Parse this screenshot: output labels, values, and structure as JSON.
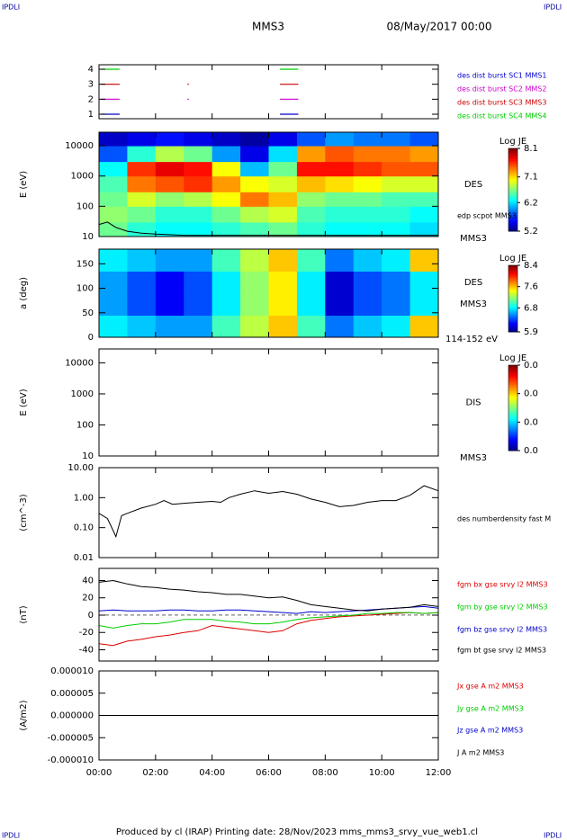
{
  "header": {
    "title": "MMS3",
    "date": "08/May/2017 00:00",
    "corners": [
      "IPDLI",
      "IPDLI",
      "IPDLI",
      "IPDLI"
    ],
    "footer": "Produced by cl (IRAP)   Printing date: 28/Nov/2023   mms_mms3_srvy_vue_web1.cl"
  },
  "chart_data": [
    {
      "type": "timeline",
      "xlim": [
        0,
        12
      ],
      "xticks": [
        0,
        2,
        4,
        6,
        8,
        10,
        12
      ],
      "ylim": [
        0.7,
        4.3
      ],
      "yticks": [
        1,
        2,
        3,
        4
      ],
      "series": [
        {
          "name": "des dist burst SC1 MMS1",
          "color": "#0000cc",
          "level": 1,
          "intervals": [
            [
              0.07,
              0.73
            ],
            [
              6.4,
              7.05
            ]
          ]
        },
        {
          "name": "des dist burst SC2 MMS2",
          "color": "#cc00cc",
          "level": 2,
          "intervals": [
            [
              0.07,
              0.73
            ],
            [
              3.13,
              3.17
            ],
            [
              6.4,
              7.05
            ]
          ]
        },
        {
          "name": "des dist burst SC3 MMS3",
          "color": "#cc0000",
          "level": 3,
          "intervals": [
            [
              0.07,
              0.73
            ],
            [
              3.13,
              3.17
            ],
            [
              6.4,
              7.05
            ]
          ]
        },
        {
          "name": "des dist burst SC4 MMS4",
          "color": "#00cc00",
          "level": 4,
          "intervals": [
            [
              0.07,
              0.73
            ],
            [
              6.4,
              7.05
            ]
          ]
        }
      ]
    },
    {
      "type": "heatmap",
      "ylabel": "E (eV)",
      "log_y": true,
      "xlim": [
        0,
        12
      ],
      "xticks": [
        0,
        2,
        4,
        6,
        8,
        10,
        12
      ],
      "ylim": [
        10,
        28000
      ],
      "yticks": [
        10,
        100,
        1000,
        10000
      ],
      "instrument": "DES",
      "spacecraft": "MMS3",
      "colorbar_title": "Log JE",
      "colormap": "jet",
      "zlim": [
        5.2,
        8.1
      ],
      "zticks": [
        5.2,
        6.2,
        7.1,
        8.1
      ],
      "x_edges": [
        0,
        1,
        2,
        3,
        4,
        5,
        6,
        7,
        8,
        9,
        10,
        11,
        12
      ],
      "y_edges": [
        10,
        30,
        100,
        300,
        1000,
        3000,
        10000,
        28000
      ],
      "z": [
        [
          6.6,
          6.7,
          6.6,
          6.5,
          6.3,
          5.8,
          5.4
        ],
        [
          6.4,
          6.6,
          6.9,
          7.4,
          7.6,
          6.4,
          5.5
        ],
        [
          6.3,
          6.4,
          6.7,
          7.5,
          7.8,
          6.8,
          5.6
        ],
        [
          6.3,
          6.4,
          6.8,
          7.6,
          7.7,
          6.6,
          5.5
        ],
        [
          6.4,
          6.6,
          7.0,
          7.3,
          7.0,
          6.0,
          5.4
        ],
        [
          6.5,
          6.8,
          7.4,
          7.0,
          6.1,
          5.5,
          5.3
        ],
        [
          6.6,
          6.9,
          7.2,
          6.9,
          6.6,
          6.2,
          5.5
        ],
        [
          6.4,
          6.5,
          6.7,
          7.2,
          7.7,
          7.3,
          5.8
        ],
        [
          6.3,
          6.4,
          6.6,
          7.1,
          7.7,
          7.5,
          6.0
        ],
        [
          6.3,
          6.4,
          6.6,
          7.0,
          7.6,
          7.4,
          5.9
        ],
        [
          6.3,
          6.4,
          6.5,
          6.9,
          7.5,
          7.4,
          5.9
        ],
        [
          6.2,
          6.3,
          6.5,
          6.9,
          7.5,
          7.3,
          5.8
        ]
      ],
      "series": [
        {
          "name": "edp scpot MMS3",
          "color": "#000000",
          "x": [
            0,
            0.3,
            0.6,
            1,
            1.5,
            2,
            3,
            4,
            5,
            6,
            7,
            8,
            9,
            10,
            11,
            12
          ],
          "values": [
            25,
            30,
            20,
            15,
            13,
            12,
            11,
            11,
            11,
            11,
            11,
            11,
            11,
            11,
            11,
            11
          ]
        }
      ]
    },
    {
      "type": "heatmap",
      "ylabel": "a (deg)",
      "xlim": [
        0,
        12
      ],
      "xticks": [
        0,
        2,
        4,
        6,
        8,
        10,
        12
      ],
      "ylim": [
        0,
        180
      ],
      "yticks": [
        0,
        50,
        100,
        150
      ],
      "instrument": "DES",
      "spacecraft": "MMS3",
      "energy_range": "114-152 eV",
      "colorbar_title": "Log JE",
      "colormap": "jet",
      "zlim": [
        5.9,
        8.4
      ],
      "zticks": [
        5.9,
        6.8,
        7.6,
        8.4
      ],
      "x_edges": [
        0,
        1,
        2,
        3,
        4,
        5,
        6,
        7,
        8,
        9,
        10,
        11,
        12
      ],
      "y_edges": [
        0,
        45,
        90,
        135,
        180
      ],
      "z": [
        [
          6.8,
          6.6,
          6.6,
          6.8
        ],
        [
          6.7,
          6.4,
          6.4,
          6.7
        ],
        [
          6.6,
          6.2,
          6.2,
          6.6
        ],
        [
          6.6,
          6.4,
          6.4,
          6.6
        ],
        [
          7.0,
          6.8,
          6.8,
          7.0
        ],
        [
          7.3,
          7.2,
          7.2,
          7.3
        ],
        [
          7.6,
          7.5,
          7.5,
          7.6
        ],
        [
          7.0,
          6.8,
          6.8,
          7.0
        ],
        [
          6.5,
          6.1,
          6.1,
          6.5
        ],
        [
          6.7,
          6.4,
          6.4,
          6.7
        ],
        [
          6.8,
          6.5,
          6.5,
          6.8
        ],
        [
          7.6,
          6.8,
          6.8,
          7.6
        ]
      ]
    },
    {
      "type": "heatmap",
      "ylabel": "E (eV)",
      "log_y": true,
      "xlim": [
        0,
        12
      ],
      "xticks": [
        0,
        2,
        4,
        6,
        8,
        10,
        12
      ],
      "ylim": [
        10,
        28000
      ],
      "yticks": [
        10,
        100,
        1000,
        10000
      ],
      "instrument": "DIS",
      "spacecraft": "MMS3",
      "colorbar_title": "Log JE",
      "colormap": "jet",
      "zlim": [
        0.01,
        0.04
      ],
      "zticks": [
        {
          "value": 0.01,
          "label": "0.0"
        },
        {
          "value": 0.02,
          "label": "0.0"
        },
        {
          "value": 0.03,
          "label": "0.0"
        },
        {
          "value": 0.04,
          "label": "0.0"
        }
      ],
      "x_edges": [],
      "y_edges": [],
      "z": []
    },
    {
      "type": "line",
      "ylabel": "(cm^-3)",
      "log_y": true,
      "xlim": [
        0,
        12
      ],
      "xticks": [
        0,
        2,
        4,
        6,
        8,
        10,
        12
      ],
      "ylim": [
        0.01,
        10
      ],
      "yticks": [
        {
          "value": 0.01,
          "label": "0.01"
        },
        {
          "value": 0.1,
          "label": "0.10"
        },
        {
          "value": 1,
          "label": "1.00"
        },
        {
          "value": 10,
          "label": "10.00"
        }
      ],
      "x": [
        0,
        0.3,
        0.5,
        0.6,
        0.8,
        1,
        1.5,
        2,
        2.3,
        2.6,
        3,
        3.5,
        4,
        4.3,
        4.6,
        5,
        5.5,
        6,
        6.5,
        7,
        7.5,
        8,
        8.5,
        9,
        9.5,
        10,
        10.5,
        11,
        11.5,
        12
      ],
      "series": [
        {
          "name": "des numberdensity fast M",
          "color": "#000000",
          "values": [
            0.3,
            0.2,
            0.08,
            0.05,
            0.25,
            0.3,
            0.45,
            0.6,
            0.8,
            0.6,
            0.65,
            0.7,
            0.75,
            0.7,
            1.0,
            1.3,
            1.7,
            1.4,
            1.6,
            1.3,
            0.9,
            0.7,
            0.5,
            0.55,
            0.7,
            0.8,
            0.8,
            1.2,
            2.5,
            1.7
          ]
        }
      ]
    },
    {
      "type": "line",
      "ylabel": "(nT)",
      "xlim": [
        0,
        12
      ],
      "xticks": [
        0,
        2,
        4,
        6,
        8,
        10,
        12
      ],
      "ylim": [
        -53,
        54
      ],
      "yticks": [
        -40,
        -20,
        0,
        20,
        40
      ],
      "zero_line": true,
      "x": [
        0,
        0.5,
        1,
        1.5,
        2,
        2.5,
        3,
        3.5,
        4,
        4.5,
        5,
        5.5,
        6,
        6.5,
        7,
        7.5,
        8,
        8.5,
        9,
        9.5,
        10,
        10.5,
        11,
        11.5,
        12
      ],
      "series": [
        {
          "name": "fgm bx gse srvy l2 MMS3",
          "color": "#dd0000",
          "values": [
            -33,
            -35,
            -30,
            -28,
            -25,
            -23,
            -20,
            -18,
            -12,
            -14,
            -16,
            -18,
            -20,
            -18,
            -10,
            -6,
            -4,
            -2,
            -1,
            0,
            1,
            2,
            3,
            2,
            3
          ]
        },
        {
          "name": "fgm by gse srvy l2 MMS3",
          "color": "#00cc00",
          "values": [
            -12,
            -15,
            -12,
            -10,
            -10,
            -8,
            -5,
            -5,
            -5,
            -7,
            -8,
            -10,
            -10,
            -8,
            -5,
            -3,
            -2,
            -1,
            0,
            2,
            2,
            3,
            3,
            2,
            3
          ]
        },
        {
          "name": "fgm bz gse srvy l2 MMS3",
          "color": "#0000cc",
          "values": [
            5,
            6,
            5,
            5,
            5,
            6,
            6,
            5,
            5,
            6,
            6,
            5,
            4,
            3,
            2,
            4,
            3,
            4,
            5,
            6,
            7,
            8,
            9,
            10,
            8
          ]
        },
        {
          "name": "fgm bt gse srvy l2 MMS3",
          "color": "#000000",
          "values": [
            38,
            40,
            36,
            33,
            32,
            30,
            29,
            27,
            26,
            24,
            24,
            22,
            20,
            21,
            17,
            12,
            10,
            8,
            6,
            5,
            7,
            8,
            9,
            12,
            10
          ]
        }
      ]
    },
    {
      "type": "line",
      "ylabel": "(A/m2)",
      "xlim": [
        0,
        12
      ],
      "xticks": [
        {
          "value": 0,
          "label": "00:00"
        },
        {
          "value": 2,
          "label": "02:00"
        },
        {
          "value": 4,
          "label": "04:00"
        },
        {
          "value": 6,
          "label": "06:00"
        },
        {
          "value": 8,
          "label": "08:00"
        },
        {
          "value": 10,
          "label": "10:00"
        },
        {
          "value": 12,
          "label": "12:00"
        }
      ],
      "ylim": [
        -1e-05,
        1e-05
      ],
      "yticks": [
        {
          "value": -1e-05,
          "label": "-0.000010"
        },
        {
          "value": -5e-06,
          "label": "-0.000005"
        },
        {
          "value": 0,
          "label": "0.000000"
        },
        {
          "value": 5e-06,
          "label": "0.000005"
        },
        {
          "value": 1e-05,
          "label": "0.000010"
        }
      ],
      "x": [
        0,
        3,
        6,
        9,
        12
      ],
      "series": [
        {
          "name": "Jx gse A m2 MMS3",
          "color": "#dd0000",
          "values": [
            0,
            0,
            0,
            0,
            0
          ]
        },
        {
          "name": "Jy gse A m2 MMS3",
          "color": "#00cc00",
          "values": [
            0,
            0,
            0,
            0,
            0
          ]
        },
        {
          "name": "Jz gse A m2 MMS3",
          "color": "#0000cc",
          "values": [
            0,
            0,
            0,
            0,
            0
          ]
        },
        {
          "name": "J A m2 MMS3",
          "color": "#000000",
          "values": [
            0,
            0,
            0,
            0,
            0
          ]
        }
      ]
    }
  ]
}
